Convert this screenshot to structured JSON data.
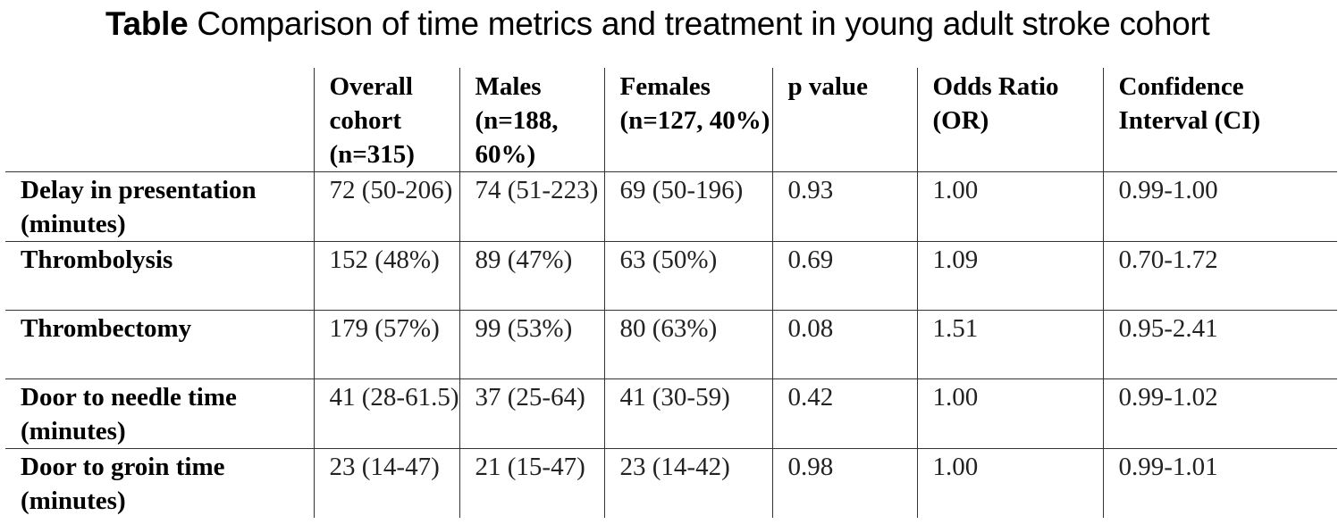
{
  "title": {
    "bold": "Table",
    "text": " Comparison of time metrics and treatment in young adult stroke cohort"
  },
  "table": {
    "headers": [
      "",
      "Overall cohort (n=315)",
      "Males (n=188, 60%)",
      "Females (n=127, 40%)",
      "p value",
      "Odds Ratio (OR)",
      "Confidence Interval (CI)"
    ],
    "rows": [
      {
        "label": "Delay in presentation (minutes)",
        "cells": [
          "72 (50-206)",
          "74 (51-223)",
          "69 (50-196)",
          "0.93",
          "1.00",
          "0.99-1.00"
        ]
      },
      {
        "label": "Thrombolysis",
        "cells": [
          "152 (48%)",
          "89 (47%)",
          "63 (50%)",
          "0.69",
          "1.09",
          "0.70-1.72"
        ]
      },
      {
        "label": "Thrombectomy",
        "cells": [
          "179 (57%)",
          "99 (53%)",
          "80 (63%)",
          "0.08",
          "1.51",
          "0.95-2.41"
        ]
      },
      {
        "label": "Door to needle time (minutes)",
        "cells": [
          "41 (28-61.5)",
          "37 (25-64)",
          "41 (30-59)",
          "0.42",
          "1.00",
          "0.99-1.02"
        ]
      },
      {
        "label": "Door to groin time (minutes)",
        "cells": [
          "23 (14-47)",
          "21 (15-47)",
          "23 (14-42)",
          "0.98",
          "1.00",
          "0.99-1.01"
        ]
      }
    ]
  }
}
